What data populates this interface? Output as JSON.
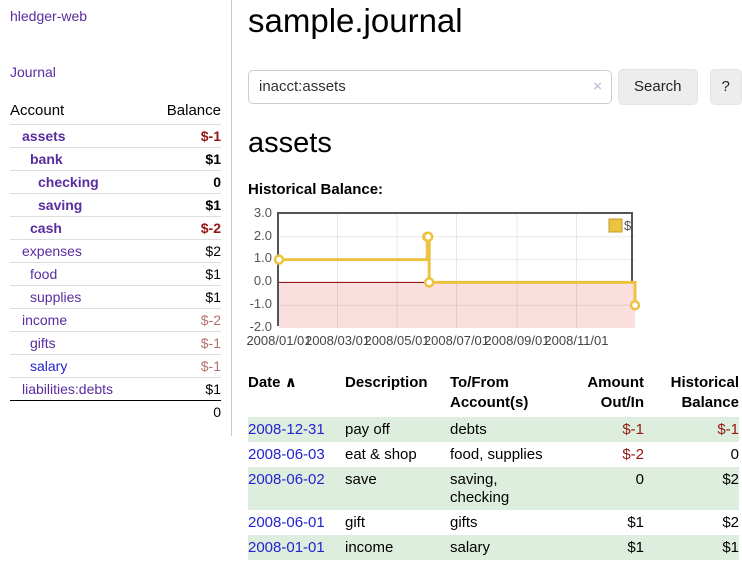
{
  "colors": {
    "link_purple": "#5A2CA0",
    "link_blue": "#2323D1",
    "negative_strong": "#941710",
    "negative_muted": "#B5716F",
    "row_stripe_green": "#DEEEDE",
    "chart_line_gold": "#EDC240",
    "chart_negative_pink": "#FBDEDE",
    "chart_zero_line": "#8B0000"
  },
  "sidebar": {
    "app_title": "hledger-web",
    "journal_label": "Journal",
    "accounts_table": {
      "headers": {
        "account": "Account",
        "balance": "Balance"
      },
      "rows": [
        {
          "account": "assets",
          "balance": "$-1",
          "indent": 1,
          "bold": true,
          "link_style": "purple",
          "balance_style": "negative-strong"
        },
        {
          "account": "bank",
          "balance": "$1",
          "indent": 2,
          "bold": true,
          "link_style": "purple",
          "balance_style": ""
        },
        {
          "account": "checking",
          "balance": "0",
          "indent": 3,
          "bold": true,
          "link_style": "purple",
          "balance_style": ""
        },
        {
          "account": "saving",
          "balance": "$1",
          "indent": 3,
          "bold": true,
          "link_style": "purple",
          "balance_style": ""
        },
        {
          "account": "cash",
          "balance": "$-2",
          "indent": 2,
          "bold": true,
          "link_style": "purple",
          "balance_style": "negative-strong"
        },
        {
          "account": "expenses",
          "balance": "$2",
          "indent": 1,
          "bold": false,
          "link_style": "purple",
          "balance_style": ""
        },
        {
          "account": "food",
          "balance": "$1",
          "indent": 2,
          "bold": false,
          "link_style": "purple",
          "balance_style": ""
        },
        {
          "account": "supplies",
          "balance": "$1",
          "indent": 2,
          "bold": false,
          "link_style": "purple",
          "balance_style": ""
        },
        {
          "account": "income",
          "balance": "$-2",
          "indent": 1,
          "bold": false,
          "link_style": "purple",
          "balance_style": "negative-muted"
        },
        {
          "account": "gifts",
          "balance": "$-1",
          "indent": 2,
          "bold": false,
          "link_style": "purple",
          "balance_style": "negative-muted"
        },
        {
          "account": "salary",
          "balance": "$-1",
          "indent": 2,
          "bold": false,
          "link_style": "blue",
          "balance_style": "negative-muted"
        },
        {
          "account": "liabilities:debts",
          "balance": "$1",
          "indent": 1,
          "bold": false,
          "link_style": "purple",
          "balance_style": ""
        }
      ],
      "total": "0"
    }
  },
  "header": {
    "title": "sample.journal"
  },
  "search": {
    "query": "inacct:assets",
    "clear_icon": "×",
    "button_label": "Search",
    "help_label": "?"
  },
  "account_page": {
    "heading": "assets",
    "chart_label": "Historical Balance:"
  },
  "chart_data": {
    "type": "line",
    "title": "Historical Balance",
    "step": true,
    "series": [
      {
        "name": "$",
        "color": "#EDC240",
        "points": [
          {
            "x": "2008-01-01",
            "y": 1
          },
          {
            "x": "2008-06-01",
            "y": 2
          },
          {
            "x": "2008-06-02",
            "y": 2
          },
          {
            "x": "2008-06-03",
            "y": 0
          },
          {
            "x": "2008-12-31",
            "y": -1
          }
        ]
      }
    ],
    "xlim": [
      "2008-01-01",
      "2008-12-31"
    ],
    "ylim": [
      -2,
      3
    ],
    "x_ticks": [
      "2008/01/01",
      "2008/03/01",
      "2008/05/01",
      "2008/07/01",
      "2008/09/01",
      "2008/11/01"
    ],
    "y_ticks": [
      "3.0",
      "2.0",
      "1.0",
      "0.0",
      "-1.0",
      "-2.0"
    ],
    "legend": {
      "label": "$",
      "position": "top-right"
    },
    "grid": true,
    "grid_color": "rgba(0,0,0,0.09)",
    "negative_region": true,
    "negative_fill": "#FBDEDE",
    "zero_line_color": "#8B0000"
  },
  "register": {
    "sort_icon": "∧",
    "headers": [
      {
        "label": "Date"
      },
      {
        "label": "Description"
      },
      {
        "label": "To/From Account(s)"
      },
      {
        "label": "Amount Out/In"
      },
      {
        "label": "Historical Balance"
      }
    ],
    "rows": [
      {
        "date": "2008-12-31",
        "description": "pay off",
        "accounts": "debts",
        "amount": "$-1",
        "balance": "$-1",
        "amount_negative": true,
        "balance_negative": true
      },
      {
        "date": "2008-06-03",
        "description": "eat & shop",
        "accounts": "food, supplies",
        "amount": "$-2",
        "balance": "0",
        "amount_negative": true,
        "balance_negative": false
      },
      {
        "date": "2008-06-02",
        "description": "save",
        "accounts": "saving, checking",
        "amount": "0",
        "balance": "$2",
        "amount_negative": false,
        "balance_negative": false
      },
      {
        "date": "2008-06-01",
        "description": "gift",
        "accounts": "gifts",
        "amount": "$1",
        "balance": "$2",
        "amount_negative": false,
        "balance_negative": false
      },
      {
        "date": "2008-01-01",
        "description": "income",
        "accounts": "salary",
        "amount": "$1",
        "balance": "$1",
        "amount_negative": false,
        "balance_negative": false
      }
    ]
  }
}
